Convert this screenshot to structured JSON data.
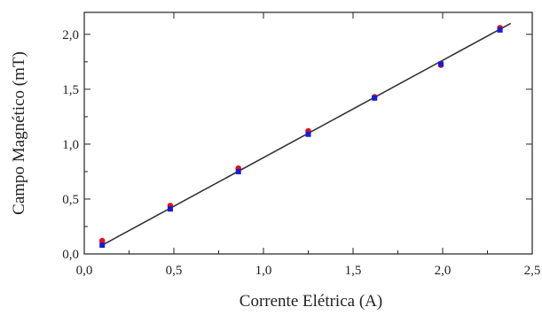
{
  "chart_data": {
    "type": "scatter",
    "xlabel": "Corrente Elétrica (A)",
    "ylabel": "Campo Magnético (mT)",
    "xlim": [
      0,
      2.5
    ],
    "ylim": [
      0,
      2.2
    ],
    "x_ticks": [
      0,
      0.5,
      1.0,
      1.5,
      2.0,
      2.5
    ],
    "x_tick_labels": [
      "0,0",
      "0,5",
      "1,0",
      "1,5",
      "2,0",
      "2,5"
    ],
    "y_ticks": [
      0,
      0.5,
      1.0,
      1.5,
      2.0
    ],
    "y_tick_labels": [
      "0,0",
      "0,5",
      "1,0",
      "1,5",
      "2,0"
    ],
    "grid": false,
    "series": [
      {
        "color": "#e8101a",
        "marker": "circle",
        "x": [
          0.1,
          0.48,
          0.86,
          1.25,
          1.62,
          1.99,
          2.32
        ],
        "y": [
          0.12,
          0.44,
          0.78,
          1.12,
          1.43,
          1.72,
          2.06
        ]
      },
      {
        "color": "#1a1ad8",
        "marker": "square",
        "x": [
          0.1,
          0.48,
          0.86,
          1.25,
          1.62,
          1.99,
          2.32
        ],
        "y": [
          0.08,
          0.41,
          0.75,
          1.09,
          1.42,
          1.73,
          2.04
        ]
      }
    ],
    "fit_line": {
      "color": "#333333",
      "x": [
        0.1,
        2.38
      ],
      "y": [
        0.08,
        2.1
      ]
    }
  }
}
